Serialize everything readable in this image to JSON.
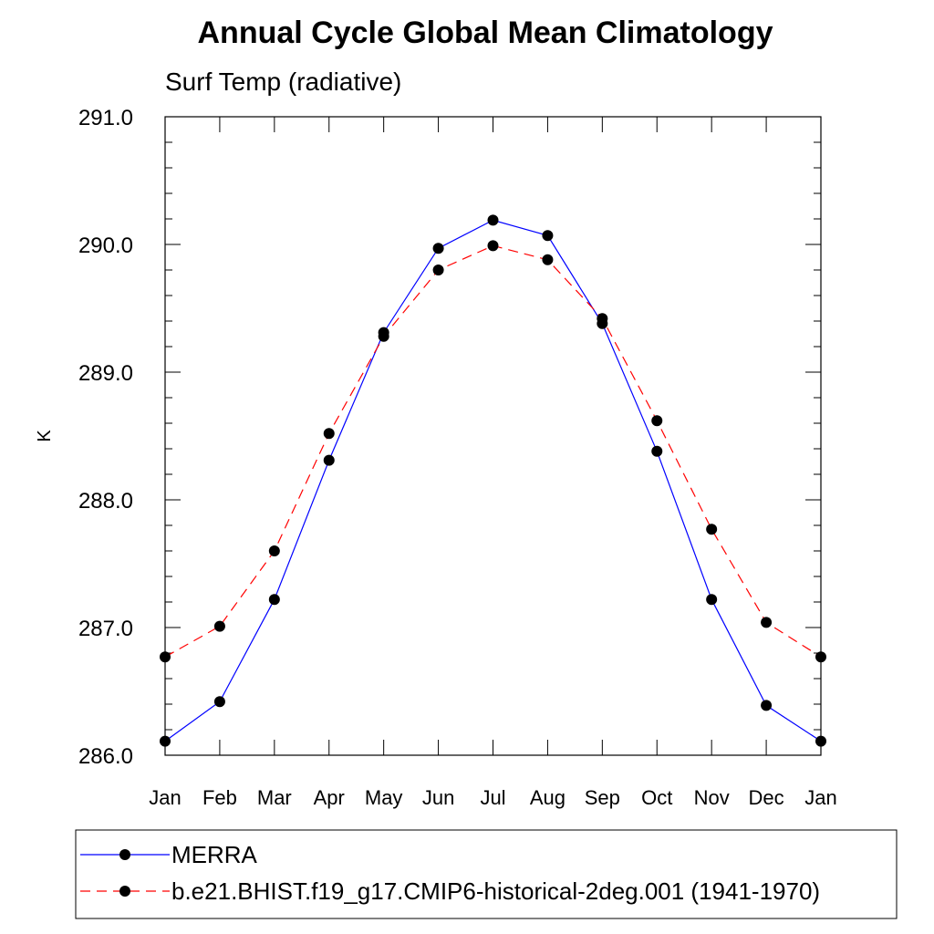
{
  "chart_data": {
    "type": "line",
    "title": "Annual Cycle Global Mean Climatology",
    "subtitle": "Surf Temp (radiative)",
    "xlabel": "",
    "ylabel": "K",
    "categories": [
      "Jan",
      "Feb",
      "Mar",
      "Apr",
      "May",
      "Jun",
      "Jul",
      "Aug",
      "Sep",
      "Oct",
      "Nov",
      "Dec",
      "Jan"
    ],
    "ylim": [
      286.0,
      291.0
    ],
    "yticks": [
      286.0,
      287.0,
      288.0,
      289.0,
      290.0,
      291.0
    ],
    "ytick_labels": [
      "286.0",
      "287.0",
      "288.0",
      "289.0",
      "290.0",
      "291.0"
    ],
    "grid": false,
    "legend_position": "bottom",
    "series": [
      {
        "name": "MERRA",
        "color": "#0000ff",
        "line_style": "solid",
        "marker": "filled-circle",
        "values": [
          286.11,
          286.42,
          287.22,
          288.31,
          289.31,
          289.97,
          290.19,
          290.07,
          289.38,
          288.38,
          287.22,
          286.39,
          286.11
        ]
      },
      {
        "name": "b.e21.BHIST.f19_g17.CMIP6-historical-2deg.001 (1941-1970)",
        "color": "#ff0000",
        "line_style": "dashed",
        "marker": "filled-circle",
        "values": [
          286.77,
          287.01,
          287.6,
          288.52,
          289.28,
          289.8,
          289.99,
          289.88,
          289.42,
          288.62,
          287.77,
          287.04,
          286.77
        ]
      }
    ]
  }
}
